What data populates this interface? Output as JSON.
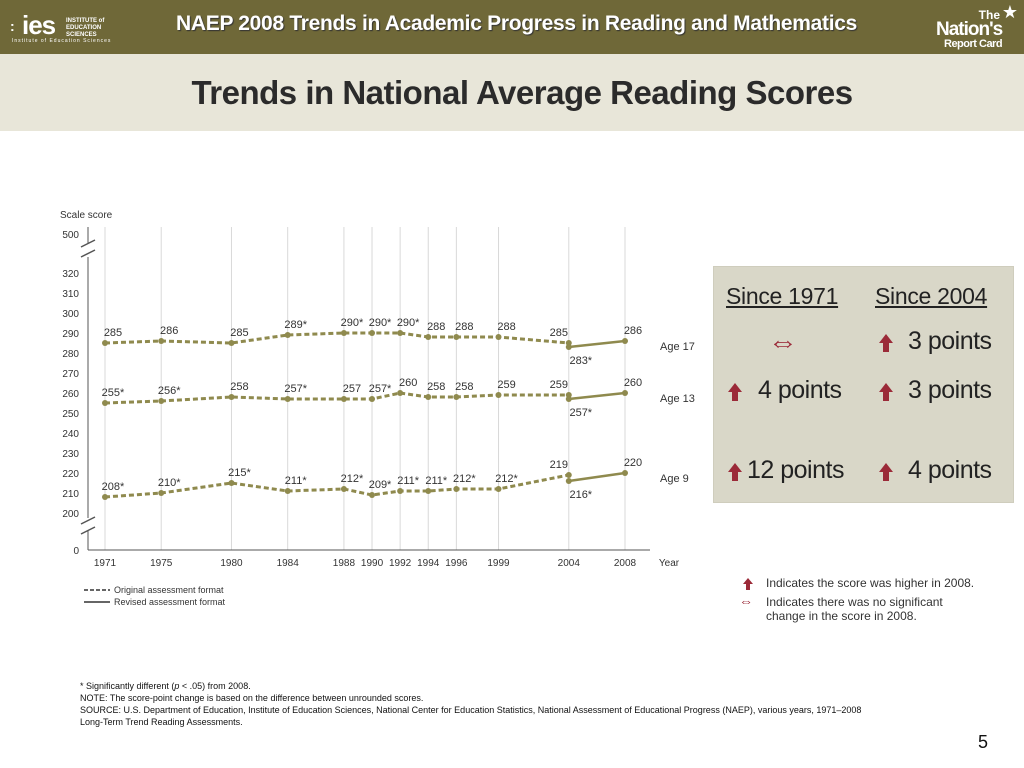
{
  "header": {
    "title": "NAEP 2008 Trends in Academic Progress in Reading and Mathematics",
    "ies_logo": {
      "word": "ies",
      "line1": "INSTITUTE of",
      "line2": "EDUCATION SCIENCES",
      "line3": "Institute of Education Sciences"
    },
    "nrc_logo": {
      "line1": "The",
      "line2": "Nation's",
      "line3": "Report Card",
      "icon": "star-icon"
    }
  },
  "slide_title": "Trends in National Average Reading Scores",
  "chart_data": {
    "type": "line",
    "ylabel": "Scale score",
    "xlabel": "Year",
    "x": [
      1971,
      1975,
      1980,
      1984,
      1988,
      1990,
      1992,
      1994,
      1996,
      1999,
      2004,
      2008
    ],
    "y_ticks": [
      200,
      210,
      220,
      230,
      240,
      250,
      260,
      270,
      280,
      290,
      300,
      310,
      320
    ],
    "y_top_tick": 500,
    "y_zero_tick": 0,
    "ylim": [
      200,
      320
    ],
    "axis_break": true,
    "grid": "vertical",
    "series": [
      {
        "name": "Age 17",
        "original": [
          [
            1971,
            285
          ],
          [
            1975,
            286
          ],
          [
            1980,
            285
          ],
          [
            1984,
            289
          ],
          [
            1988,
            290
          ],
          [
            1990,
            290
          ],
          [
            1992,
            290
          ],
          [
            1994,
            288
          ],
          [
            1996,
            288
          ],
          [
            1999,
            288
          ],
          [
            2004,
            285
          ]
        ],
        "revised": [
          [
            2004,
            283
          ],
          [
            2008,
            286
          ]
        ],
        "labels": [
          {
            "x": 1971,
            "y": 285,
            "text": "285"
          },
          {
            "x": 1975,
            "y": 286,
            "text": "286"
          },
          {
            "x": 1980,
            "y": 285,
            "text": "285"
          },
          {
            "x": 1984,
            "y": 289,
            "text": "289*"
          },
          {
            "x": 1988,
            "y": 290,
            "text": "290*"
          },
          {
            "x": 1990,
            "y": 290,
            "text": "290*"
          },
          {
            "x": 1992,
            "y": 290,
            "text": "290*"
          },
          {
            "x": 1994,
            "y": 288,
            "text": "288"
          },
          {
            "x": 1996,
            "y": 288,
            "text": "288"
          },
          {
            "x": 1999,
            "y": 288,
            "text": "288"
          },
          {
            "x": 2004,
            "y": 285,
            "text": "285"
          },
          {
            "x": 2004,
            "y": 283,
            "text": "283*",
            "below": true
          },
          {
            "x": 2008,
            "y": 286,
            "text": "286"
          }
        ]
      },
      {
        "name": "Age 13",
        "original": [
          [
            1971,
            255
          ],
          [
            1975,
            256
          ],
          [
            1980,
            258
          ],
          [
            1984,
            257
          ],
          [
            1988,
            257
          ],
          [
            1990,
            257
          ],
          [
            1992,
            260
          ],
          [
            1994,
            258
          ],
          [
            1996,
            258
          ],
          [
            1999,
            259
          ],
          [
            2004,
            259
          ]
        ],
        "revised": [
          [
            2004,
            257
          ],
          [
            2008,
            260
          ]
        ],
        "labels": [
          {
            "x": 1971,
            "y": 255,
            "text": "255*"
          },
          {
            "x": 1975,
            "y": 256,
            "text": "256*"
          },
          {
            "x": 1980,
            "y": 258,
            "text": "258"
          },
          {
            "x": 1984,
            "y": 257,
            "text": "257*"
          },
          {
            "x": 1988,
            "y": 257,
            "text": "257"
          },
          {
            "x": 1990,
            "y": 257,
            "text": "257*"
          },
          {
            "x": 1992,
            "y": 260,
            "text": "260"
          },
          {
            "x": 1994,
            "y": 258,
            "text": "258"
          },
          {
            "x": 1996,
            "y": 258,
            "text": "258"
          },
          {
            "x": 1999,
            "y": 259,
            "text": "259"
          },
          {
            "x": 2004,
            "y": 259,
            "text": "259"
          },
          {
            "x": 2004,
            "y": 257,
            "text": "257*",
            "below": true
          },
          {
            "x": 2008,
            "y": 260,
            "text": "260"
          }
        ]
      },
      {
        "name": "Age 9",
        "original": [
          [
            1971,
            208
          ],
          [
            1975,
            210
          ],
          [
            1980,
            215
          ],
          [
            1984,
            211
          ],
          [
            1988,
            212
          ],
          [
            1990,
            209
          ],
          [
            1992,
            211
          ],
          [
            1994,
            211
          ],
          [
            1996,
            212
          ],
          [
            1999,
            212
          ],
          [
            2004,
            219
          ]
        ],
        "revised": [
          [
            2004,
            216
          ],
          [
            2008,
            220
          ]
        ],
        "labels": [
          {
            "x": 1971,
            "y": 208,
            "text": "208*"
          },
          {
            "x": 1975,
            "y": 210,
            "text": "210*"
          },
          {
            "x": 1980,
            "y": 215,
            "text": "215*"
          },
          {
            "x": 1984,
            "y": 211,
            "text": "211*"
          },
          {
            "x": 1988,
            "y": 212,
            "text": "212*"
          },
          {
            "x": 1990,
            "y": 209,
            "text": "209*"
          },
          {
            "x": 1992,
            "y": 211,
            "text": "211*"
          },
          {
            "x": 1994,
            "y": 211,
            "text": "211*"
          },
          {
            "x": 1996,
            "y": 212,
            "text": "212*"
          },
          {
            "x": 1999,
            "y": 212,
            "text": "212*"
          },
          {
            "x": 2004,
            "y": 219,
            "text": "219"
          },
          {
            "x": 2004,
            "y": 216,
            "text": "216*",
            "below": true
          },
          {
            "x": 2008,
            "y": 220,
            "text": "220"
          }
        ]
      }
    ],
    "legend": [
      {
        "style": "dashed",
        "label": "Original assessment format"
      },
      {
        "style": "solid",
        "label": "Revised assessment format"
      }
    ],
    "legend_position": "bottom-left",
    "colors": {
      "line": "#8f8a4e",
      "point": "#8f8a4e",
      "grid": "#d9d9d9"
    }
  },
  "summary": {
    "headers": [
      "Since 1971",
      "Since 2004"
    ],
    "rows": [
      {
        "age": "Age 17",
        "since_1971": {
          "icon": "left-right-arrow-icon",
          "text": ""
        },
        "since_2004": {
          "icon": "up-arrow-icon",
          "text": "3 points"
        }
      },
      {
        "age": "Age 13",
        "since_1971": {
          "icon": "up-arrow-icon",
          "text": "4 points"
        },
        "since_2004": {
          "icon": "up-arrow-icon",
          "text": "3 points"
        }
      },
      {
        "age": "Age 9",
        "since_1971": {
          "icon": "up-arrow-icon",
          "text": "12 points"
        },
        "since_2004": {
          "icon": "up-arrow-icon",
          "text": "4 points"
        }
      }
    ]
  },
  "key": {
    "higher": "Indicates the score was higher in 2008.",
    "no_change_line1": "Indicates there was no significant",
    "no_change_line2": "change in the score in 2008."
  },
  "notes": {
    "significance_prefix": "* Significantly different (",
    "significance_p": "p",
    "significance_suffix": " < .05) from 2008.",
    "note": "NOTE: The score-point change is based on the difference between unrounded scores.",
    "source_line1": "SOURCE: U.S. Department of Education, Institute of Education Sciences, National Center for Education Statistics, National Assessment of Educational Progress (NAEP), various years, 1971–2008",
    "source_line2": "Long-Term Trend Reading Assessments."
  },
  "page_number": "5",
  "colors": {
    "header_bg": "#6f6838",
    "title_band": "#e8e6d9",
    "summary_box": "#d9d7c8",
    "arrow": "#9b2a38"
  }
}
